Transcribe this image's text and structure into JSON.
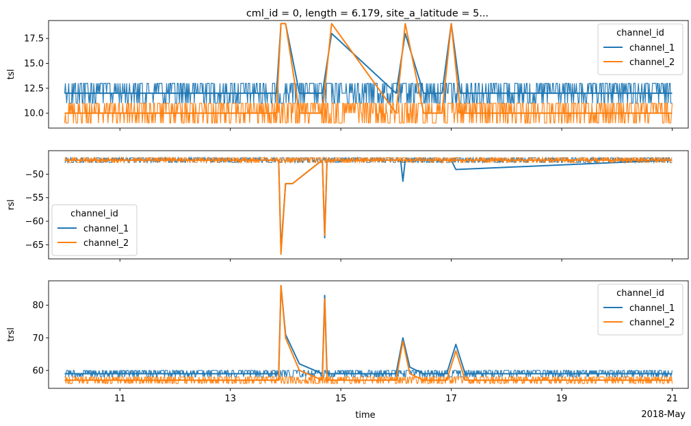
{
  "figure": {
    "title": "cml_id = 0, length = 6.179, site_a_latitude = 5...",
    "xlabel": "time",
    "x_offset_label": "2018-May"
  },
  "colors": {
    "channel_1": "#1f77b4",
    "channel_2": "#ff7f0e",
    "axis": "#000000",
    "legend_border": "#cccccc"
  },
  "chart_data": [
    {
      "type": "line",
      "panel": "tsl",
      "ylabel": "tsl",
      "xlim": [
        "2018-05-09T17:00",
        "2018-05-21T07:00"
      ],
      "ylim": [
        8.5,
        19.3
      ],
      "yticks": [
        10.0,
        12.5,
        15.0,
        17.5
      ],
      "ytick_labels": [
        "10.0",
        "12.5",
        "15.0",
        "17.5"
      ],
      "xticks": [
        "2018-05-11",
        "2018-05-13",
        "2018-05-15",
        "2018-05-17",
        "2018-05-19",
        "2018-05-21"
      ],
      "xtick_labels": [
        "",
        "",
        "",
        "",
        "",
        ""
      ],
      "legend": {
        "title": "channel_id",
        "placement": "upper right"
      },
      "series": [
        {
          "name": "channel_1",
          "color_key": "channel_1",
          "baseline": 12,
          "noise_hi": 13,
          "noise_lo": 11,
          "x": [
            "2018-05-10T00:00",
            "2018-05-13T20:00",
            "2018-05-13T22:00",
            "2018-05-14T00:00",
            "2018-05-14T06:00",
            "2018-05-14T16:00",
            "2018-05-14T20:00",
            "2018-05-16T00:00",
            "2018-05-16T04:00",
            "2018-05-16T12:00",
            "2018-05-16T20:00",
            "2018-05-17T00:00",
            "2018-05-17T04:00",
            "2018-05-21T00:00"
          ],
          "y": [
            12,
            12,
            19,
            19,
            12,
            12,
            18,
            12,
            18,
            12,
            12,
            19,
            12,
            12
          ]
        },
        {
          "name": "channel_2",
          "color_key": "channel_2",
          "baseline": 10,
          "noise_hi": 11,
          "noise_lo": 9,
          "x": [
            "2018-05-10T00:00",
            "2018-05-13T20:00",
            "2018-05-13T22:00",
            "2018-05-14T00:00",
            "2018-05-14T06:00",
            "2018-05-14T16:00",
            "2018-05-14T20:00",
            "2018-05-16T00:00",
            "2018-05-16T04:00",
            "2018-05-16T12:00",
            "2018-05-16T20:00",
            "2018-05-17T00:00",
            "2018-05-17T04:00",
            "2018-05-21T00:00"
          ],
          "y": [
            10,
            10,
            19,
            19,
            10,
            10,
            19,
            10,
            19,
            10,
            10,
            19,
            10,
            10
          ]
        }
      ]
    },
    {
      "type": "line",
      "panel": "rsl",
      "ylabel": "rsl",
      "xlim": [
        "2018-05-09T17:00",
        "2018-05-21T07:00"
      ],
      "ylim": [
        -68,
        -45
      ],
      "yticks": [
        -65,
        -60,
        -55,
        -50
      ],
      "ytick_labels": [
        "−65",
        "−60",
        "−55",
        "−50"
      ],
      "xticks": [
        "2018-05-11",
        "2018-05-13",
        "2018-05-15",
        "2018-05-17",
        "2018-05-19",
        "2018-05-21"
      ],
      "xtick_labels": [
        "",
        "",
        "",
        "",
        "",
        ""
      ],
      "legend": {
        "title": "channel_id",
        "placement": "lower left"
      },
      "series": [
        {
          "name": "channel_1",
          "color_key": "channel_1",
          "baseline": -47,
          "noise_hi": -46.5,
          "noise_lo": -47.5,
          "x": [
            "2018-05-10T00:00",
            "2018-05-13T21:00",
            "2018-05-13T22:00",
            "2018-05-14T00:00",
            "2018-05-14T03:00",
            "2018-05-14T16:00",
            "2018-05-14T17:00",
            "2018-05-14T18:00",
            "2018-05-16T02:00",
            "2018-05-16T03:00",
            "2018-05-16T04:00",
            "2018-05-17T00:00",
            "2018-05-17T02:00",
            "2018-05-21T00:00"
          ],
          "y": [
            -47,
            -47,
            -66,
            -52,
            -52,
            -47,
            -63.5,
            -47,
            -47,
            -51.5,
            -47,
            -47,
            -49,
            -47
          ]
        },
        {
          "name": "channel_2",
          "color_key": "channel_2",
          "baseline": -47,
          "noise_hi": -46.5,
          "noise_lo": -47.5,
          "x": [
            "2018-05-10T00:00",
            "2018-05-13T21:00",
            "2018-05-13T22:00",
            "2018-05-14T00:00",
            "2018-05-14T03:00",
            "2018-05-14T16:00",
            "2018-05-14T17:00",
            "2018-05-14T18:00",
            "2018-05-21T00:00"
          ],
          "y": [
            -47,
            -47,
            -67,
            -52,
            -52,
            -47,
            -63,
            -47,
            -47
          ]
        }
      ]
    },
    {
      "type": "line",
      "panel": "trsl",
      "ylabel": "trsl",
      "xlim": [
        "2018-05-09T17:00",
        "2018-05-21T07:00"
      ],
      "ylim": [
        54.5,
        87.5
      ],
      "yticks": [
        60,
        70,
        80
      ],
      "ytick_labels": [
        "60",
        "70",
        "80"
      ],
      "xticks": [
        "2018-05-11",
        "2018-05-13",
        "2018-05-15",
        "2018-05-17",
        "2018-05-19",
        "2018-05-21"
      ],
      "xtick_labels": [
        "11",
        "13",
        "15",
        "17",
        "19",
        "21"
      ],
      "legend": {
        "title": "channel_id",
        "placement": "upper right"
      },
      "series": [
        {
          "name": "channel_1",
          "color_key": "channel_1",
          "baseline": 59,
          "noise_hi": 60,
          "noise_lo": 58,
          "x": [
            "2018-05-10T00:00",
            "2018-05-13T21:00",
            "2018-05-13T22:00",
            "2018-05-14T00:00",
            "2018-05-14T06:00",
            "2018-05-14T16:00",
            "2018-05-14T17:00",
            "2018-05-14T18:00",
            "2018-05-16T00:00",
            "2018-05-16T03:00",
            "2018-05-16T06:00",
            "2018-05-16T12:00",
            "2018-05-16T22:00",
            "2018-05-17T02:00",
            "2018-05-17T06:00",
            "2018-05-21T00:00"
          ],
          "y": [
            59,
            59,
            86,
            71,
            62,
            59,
            83,
            59,
            59,
            70,
            61,
            59,
            59,
            68,
            59,
            59
          ]
        },
        {
          "name": "channel_2",
          "color_key": "channel_2",
          "baseline": 57,
          "noise_hi": 58,
          "noise_lo": 56,
          "x": [
            "2018-05-10T00:00",
            "2018-05-13T21:00",
            "2018-05-13T22:00",
            "2018-05-14T00:00",
            "2018-05-14T06:00",
            "2018-05-14T16:00",
            "2018-05-14T17:00",
            "2018-05-14T18:00",
            "2018-05-16T00:00",
            "2018-05-16T03:00",
            "2018-05-16T06:00",
            "2018-05-16T12:00",
            "2018-05-16T22:00",
            "2018-05-17T02:00",
            "2018-05-17T06:00",
            "2018-05-21T00:00"
          ],
          "y": [
            57,
            57,
            86,
            70,
            60,
            57,
            82,
            57,
            57,
            69,
            59,
            57,
            57,
            66,
            57,
            57
          ]
        }
      ]
    }
  ]
}
